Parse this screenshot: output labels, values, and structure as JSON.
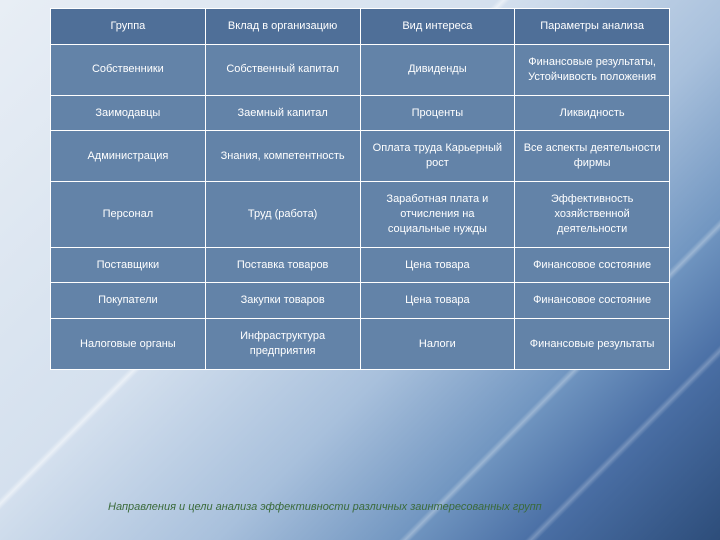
{
  "table": {
    "columns": [
      "Группа",
      "Вклад в организацию",
      "Вид интереса",
      "Параметры анализа"
    ],
    "rows": [
      [
        "Собственники",
        "Собственный капитал",
        "Дивиденды",
        "Финансовые результаты, Устойчивость положения"
      ],
      [
        "Заимодавцы",
        "Заемный капитал",
        "Проценты",
        "Ликвидность"
      ],
      [
        "Администрация",
        "Знания, компетентность",
        "Оплата труда Карьерный рост",
        "Все аспекты деятельности фирмы"
      ],
      [
        "Персонал",
        "Труд (работа)",
        "Заработная плата и отчисления на социальные нужды",
        "Эффективность хозяйственной деятельности"
      ],
      [
        "Поставщики",
        "Поставка товаров",
        "Цена товара",
        "Финансовое состояние"
      ],
      [
        "Покупатели",
        "Закупки товаров",
        "Цена товара",
        "Финансовое состояние"
      ],
      [
        "Налоговые органы",
        "Инфраструктура предприятия",
        "Налоги",
        "Финансовые результаты"
      ]
    ],
    "header_bg": "#4f6f98",
    "cell_bg": "#6383a8",
    "border_color": "#ffffff",
    "text_color": "#ffffff",
    "font_size": 11
  },
  "caption": "Направления и цели анализа эффективности различных заинтересованных групп",
  "caption_color": "#3a6a3a"
}
